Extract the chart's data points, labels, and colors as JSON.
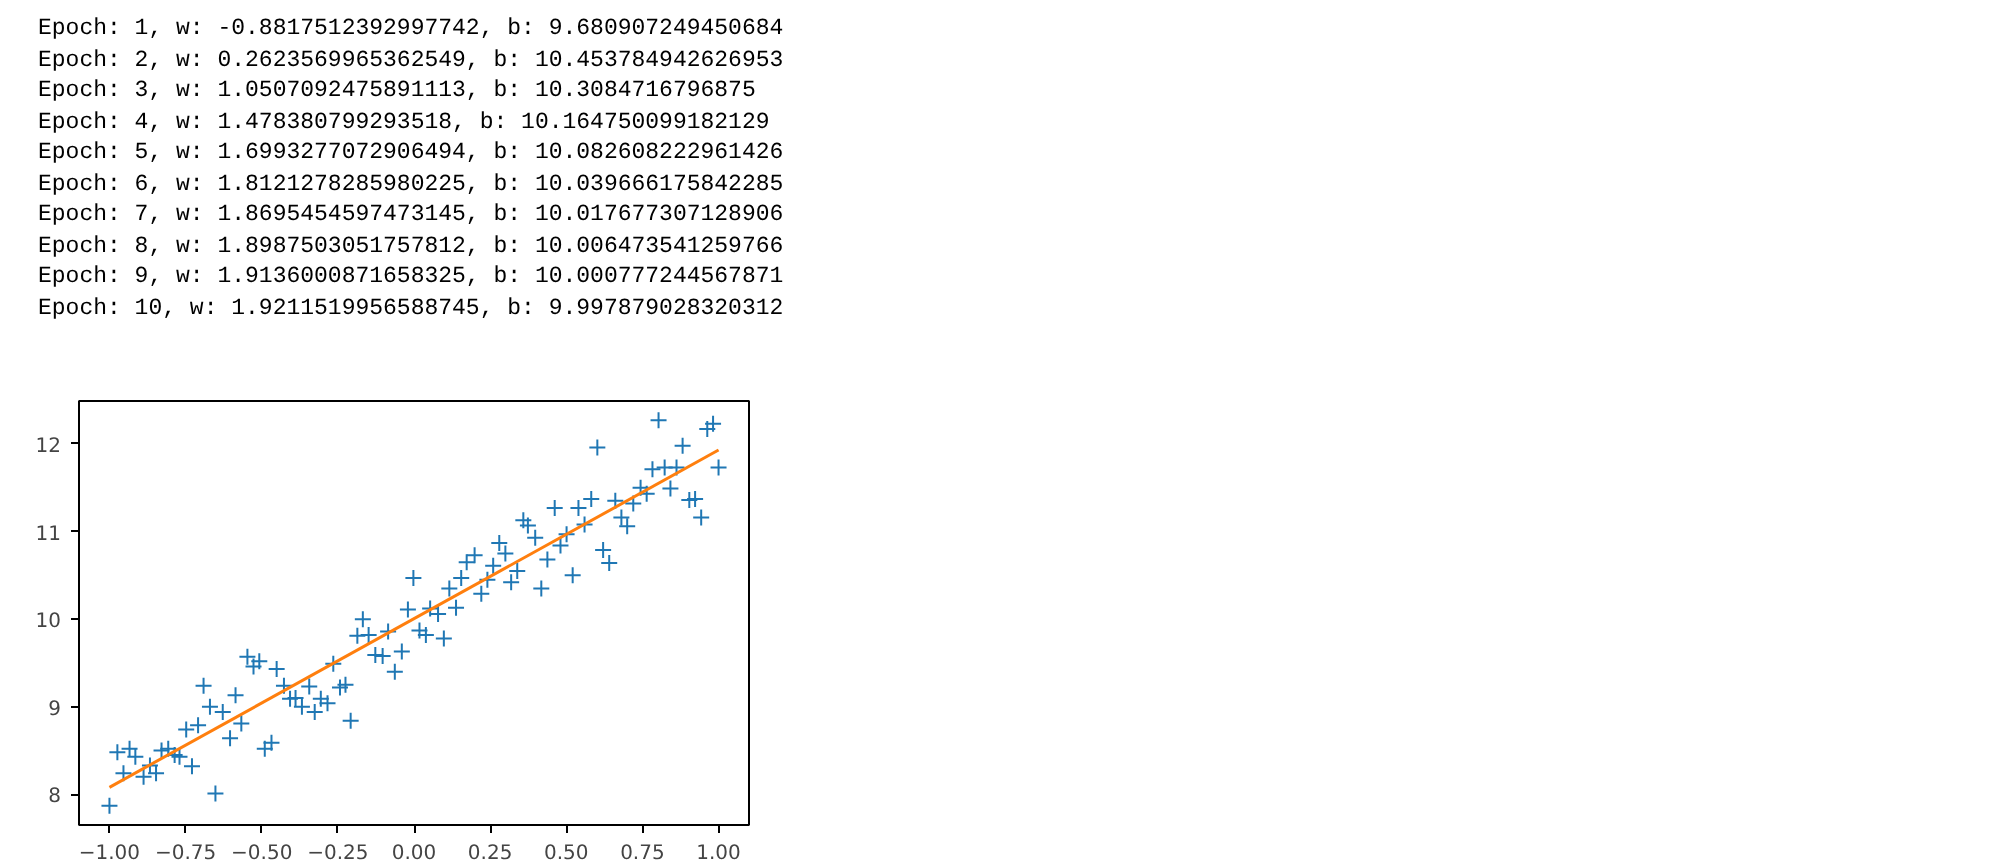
{
  "chart_data": {
    "type": "scatter",
    "annotations": [
      "Epoch: 1, w: -0.8817512392997742, b: 9.680907249450684",
      "Epoch: 2, w: 0.2623569965362549, b: 10.453784942626953",
      "Epoch: 3, w: 1.0507092475891113, b: 10.3084716796875",
      "Epoch: 4, w: 1.478380799293518, b: 10.164750099182129",
      "Epoch: 5, w: 1.6993277072906494, b: 10.082608222961426",
      "Epoch: 6, w: 1.8121278285980225, b: 10.039666175842285",
      "Epoch: 7, w: 1.8695454597473145, b: 10.017677307128906",
      "Epoch: 8, w: 1.8987503051757812, b: 10.006473541259766",
      "Epoch: 9, w: 1.9136000871658325, b: 10.000777244567871",
      "Epoch: 10, w: 1.9211519956588745, b: 9.997879028320312"
    ],
    "series": [
      {
        "color": "#1f77b4",
        "marker": "cross",
        "x": [
          -1.0,
          -0.974,
          -0.954,
          -0.934,
          -0.915,
          -0.888,
          -0.867,
          -0.847,
          -0.829,
          -0.807,
          -0.786,
          -0.77,
          -0.748,
          -0.729,
          -0.709,
          -0.691,
          -0.67,
          -0.652,
          -0.628,
          -0.604,
          -0.586,
          -0.567,
          -0.547,
          -0.527,
          -0.508,
          -0.49,
          -0.468,
          -0.451,
          -0.427,
          -0.407,
          -0.389,
          -0.368,
          -0.344,
          -0.326,
          -0.306,
          -0.284,
          -0.265,
          -0.243,
          -0.225,
          -0.208,
          -0.186,
          -0.168,
          -0.149,
          -0.127,
          -0.103,
          -0.085,
          -0.063,
          -0.04,
          -0.02,
          -0.002,
          0.018,
          0.039,
          0.053,
          0.079,
          0.098,
          0.116,
          0.138,
          0.155,
          0.173,
          0.199,
          0.221,
          0.241,
          0.26,
          0.28,
          0.3,
          0.319,
          0.339,
          0.359,
          0.374,
          0.398,
          0.418,
          0.438,
          0.462,
          0.481,
          0.501,
          0.521,
          0.54,
          0.56,
          0.582,
          0.602,
          0.621,
          0.641,
          0.661,
          0.681,
          0.7,
          0.72,
          0.744,
          0.764,
          0.783,
          0.803,
          0.823,
          0.842,
          0.862,
          0.882,
          0.904,
          0.923,
          0.943,
          0.963,
          0.982,
          1.0
        ],
        "values": [
          7.87,
          8.48,
          8.24,
          8.52,
          8.43,
          8.2,
          8.33,
          8.24,
          8.5,
          8.52,
          8.45,
          8.43,
          8.74,
          8.32,
          8.79,
          9.24,
          9.0,
          8.01,
          8.94,
          8.64,
          9.13,
          8.81,
          9.57,
          9.46,
          9.52,
          8.52,
          8.59,
          9.43,
          9.24,
          9.09,
          9.1,
          9.0,
          9.23,
          8.94,
          9.09,
          9.04,
          9.49,
          9.22,
          9.25,
          8.84,
          9.81,
          10.0,
          9.82,
          9.59,
          9.58,
          9.86,
          9.4,
          9.63,
          10.11,
          10.47,
          9.87,
          9.82,
          10.12,
          10.06,
          9.78,
          10.35,
          10.13,
          10.47,
          10.65,
          10.73,
          10.29,
          10.45,
          10.61,
          10.87,
          10.75,
          10.42,
          10.55,
          11.13,
          11.07,
          10.93,
          10.35,
          10.68,
          11.27,
          10.84,
          10.97,
          10.5,
          11.27,
          11.08,
          11.37,
          11.96,
          10.79,
          10.64,
          11.35,
          11.16,
          11.06,
          11.32,
          11.5,
          11.43,
          11.71,
          12.27,
          11.73,
          11.49,
          11.73,
          11.98,
          11.36,
          11.37,
          11.16,
          12.17,
          12.23,
          11.73
        ]
      },
      {
        "type": "line",
        "color": "#ff7f0e",
        "x": [
          -1.0,
          1.0
        ],
        "values": [
          8.08,
          11.93
        ]
      }
    ],
    "xlim": [
      -1.1,
      1.1
    ],
    "ylim": [
      7.65,
      12.49
    ],
    "xticks": [
      {
        "value": -1,
        "label": "−1.00"
      },
      {
        "value": -0.75,
        "label": "−0.75"
      },
      {
        "value": -0.5,
        "label": "−0.50"
      },
      {
        "value": -0.25,
        "label": "−0.25"
      },
      {
        "value": 0,
        "label": "0.00"
      },
      {
        "value": 0.25,
        "label": "0.25"
      },
      {
        "value": 0.5,
        "label": "0.50"
      },
      {
        "value": 0.75,
        "label": "0.75"
      },
      {
        "value": 1,
        "label": "1.00"
      }
    ],
    "yticks": [
      8,
      9,
      10,
      11,
      12
    ],
    "grid": false
  }
}
